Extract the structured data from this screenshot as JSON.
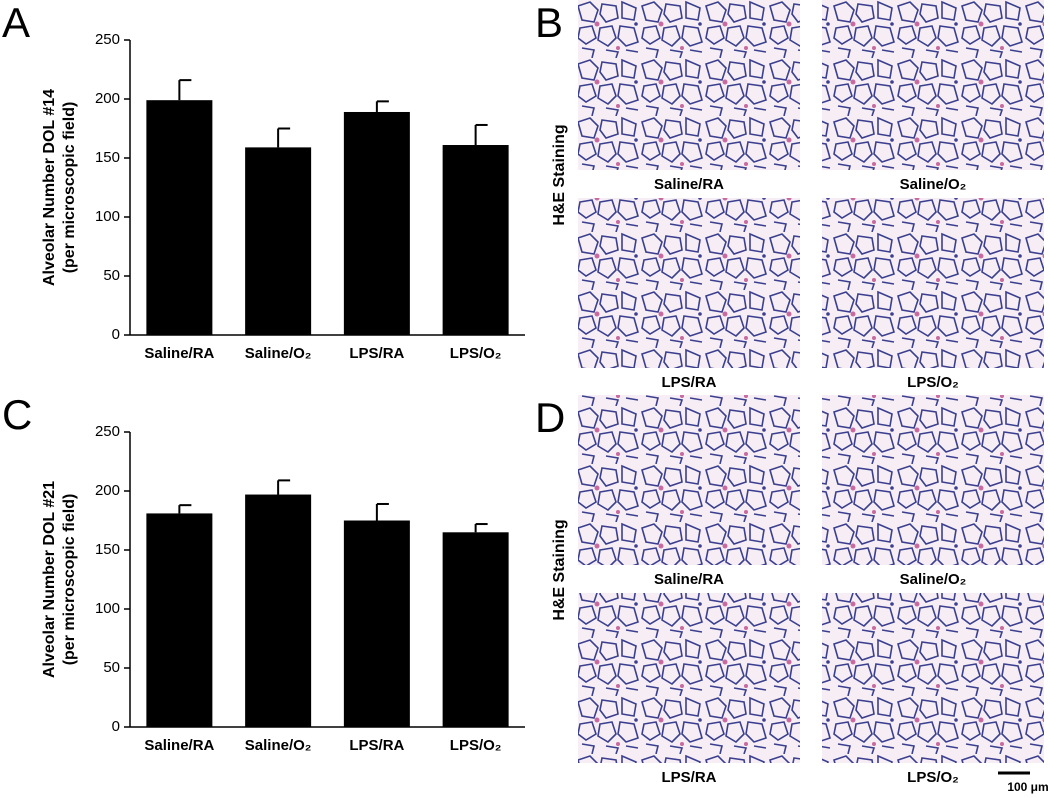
{
  "chart_data": [
    {
      "type": "bar",
      "panel": "A",
      "ylabel": [
        "Alveolar Number DOL #14",
        "(per microscopic field)"
      ],
      "categories": [
        "Saline/RA",
        "Saline/O₂",
        "LPS/RA",
        "LPS/O₂"
      ],
      "values": [
        199,
        159,
        189,
        161
      ],
      "errors": [
        17,
        16,
        9,
        17
      ],
      "color": "#000000",
      "ylim": [
        0,
        250
      ],
      "yticks": [
        0,
        50,
        100,
        150,
        200,
        250
      ]
    },
    {
      "type": "bar",
      "panel": "C",
      "ylabel": [
        "Alveolar Number DOL #21",
        "(per microscopic field)"
      ],
      "categories": [
        "Saline/RA",
        "Saline/O₂",
        "LPS/RA",
        "LPS/O₂"
      ],
      "values": [
        181,
        197,
        175,
        165
      ],
      "errors": [
        7,
        12,
        14,
        7
      ],
      "color": "#000000",
      "ylim": [
        0,
        250
      ],
      "yticks": [
        0,
        50,
        100,
        150,
        200,
        250
      ]
    }
  ],
  "images": [
    {
      "panel": "B",
      "ylabel": "H&E Staining",
      "labels": [
        "Saline/RA",
        "Saline/O₂",
        "LPS/RA",
        "LPS/O₂"
      ]
    },
    {
      "panel": "D",
      "ylabel": "H&E Staining",
      "labels": [
        "Saline/RA",
        "Saline/O₂",
        "LPS/RA",
        "LPS/O₂"
      ],
      "scale_bar": "100 μm"
    }
  ]
}
